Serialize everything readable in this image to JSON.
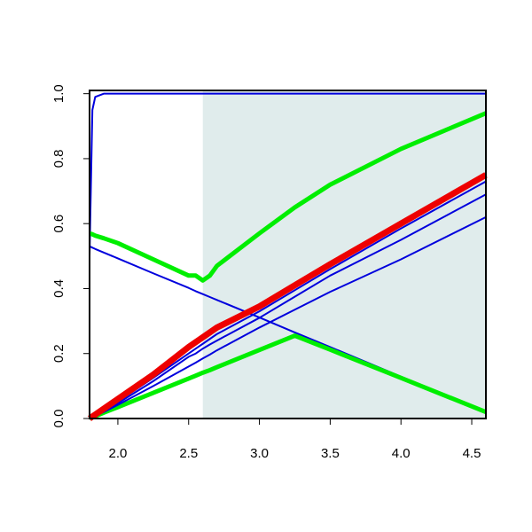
{
  "chart_data": {
    "type": "line",
    "x": [
      1.8,
      1.82,
      1.84,
      1.9,
      2.0,
      2.25,
      2.5,
      2.55,
      2.6,
      2.65,
      2.7,
      3.0,
      3.25,
      3.5,
      4.0,
      4.6
    ],
    "shaded_region": {
      "xlim": [
        2.6,
        4.6
      ],
      "color": "#e0ecec"
    },
    "series": [
      {
        "color": "#0000dd",
        "line_width": 2,
        "values": [
          0.5,
          0.95,
          0.99,
          1.0,
          1.0,
          1.0,
          1.0,
          1.0,
          1.0,
          1.0,
          1.0,
          1.0,
          1.0,
          1.0,
          1.0,
          1.0
        ]
      },
      {
        "color": "#0000dd",
        "line_width": 2,
        "values": [
          0.53,
          0.526,
          0.522,
          0.511,
          0.493,
          0.447,
          0.402,
          0.392,
          0.383,
          0.374,
          0.365,
          0.311,
          0.265,
          0.22,
          0.129,
          0.02
        ]
      },
      {
        "color": "#00ee00",
        "line_width": 5,
        "values": [
          0.0,
          0.004,
          0.007,
          0.018,
          0.035,
          0.079,
          0.123,
          0.132,
          0.141,
          0.149,
          0.158,
          0.211,
          0.255,
          0.212,
          0.125,
          0.02
        ]
      },
      {
        "color": "#00ee00",
        "line_width": 5,
        "values": [
          0.57,
          0.567,
          0.563,
          0.555,
          0.54,
          0.49,
          0.44,
          0.44,
          0.425,
          0.44,
          0.47,
          0.57,
          0.65,
          0.72,
          0.83,
          0.94
        ]
      },
      {
        "color": "#0000dd",
        "line_width": 2,
        "values": [
          0.0,
          0.005,
          0.01,
          0.025,
          0.052,
          0.125,
          0.2,
          0.215,
          0.23,
          0.245,
          0.26,
          0.33,
          0.395,
          0.46,
          0.585,
          0.73
        ]
      },
      {
        "color": "#0000dd",
        "line_width": 2,
        "values": [
          0.0,
          0.005,
          0.009,
          0.023,
          0.047,
          0.115,
          0.19,
          0.2,
          0.215,
          0.228,
          0.24,
          0.31,
          0.375,
          0.44,
          0.55,
          0.69
        ]
      },
      {
        "color": "#0000dd",
        "line_width": 2,
        "values": [
          0.0,
          0.004,
          0.008,
          0.02,
          0.042,
          0.1,
          0.16,
          0.172,
          0.185,
          0.197,
          0.21,
          0.28,
          0.335,
          0.39,
          0.49,
          0.62
        ]
      },
      {
        "color": "#ee0000",
        "line_width": 7,
        "values": [
          0.0,
          0.006,
          0.012,
          0.03,
          0.06,
          0.135,
          0.22,
          0.235,
          0.25,
          0.265,
          0.28,
          0.345,
          0.41,
          0.475,
          0.6,
          0.75
        ]
      }
    ],
    "xlim": [
      1.8,
      4.6
    ],
    "ylim": [
      0,
      1.01
    ],
    "xticks": [
      {
        "value": 2,
        "label": "2.0"
      },
      {
        "value": 2.5,
        "label": "2.5"
      },
      {
        "value": 3,
        "label": "3.0"
      },
      {
        "value": 3.5,
        "label": "3.5"
      },
      {
        "value": 4,
        "label": "4.0"
      },
      {
        "value": 4.5,
        "label": "4.5"
      }
    ],
    "yticks": [
      {
        "value": 0,
        "label": "0.0"
      },
      {
        "value": 0.2,
        "label": "0.2"
      },
      {
        "value": 0.4,
        "label": "0.4"
      },
      {
        "value": 0.6,
        "label": "0.6"
      },
      {
        "value": 0.8,
        "label": "0.8"
      },
      {
        "value": 1,
        "label": "1.0"
      }
    ]
  }
}
